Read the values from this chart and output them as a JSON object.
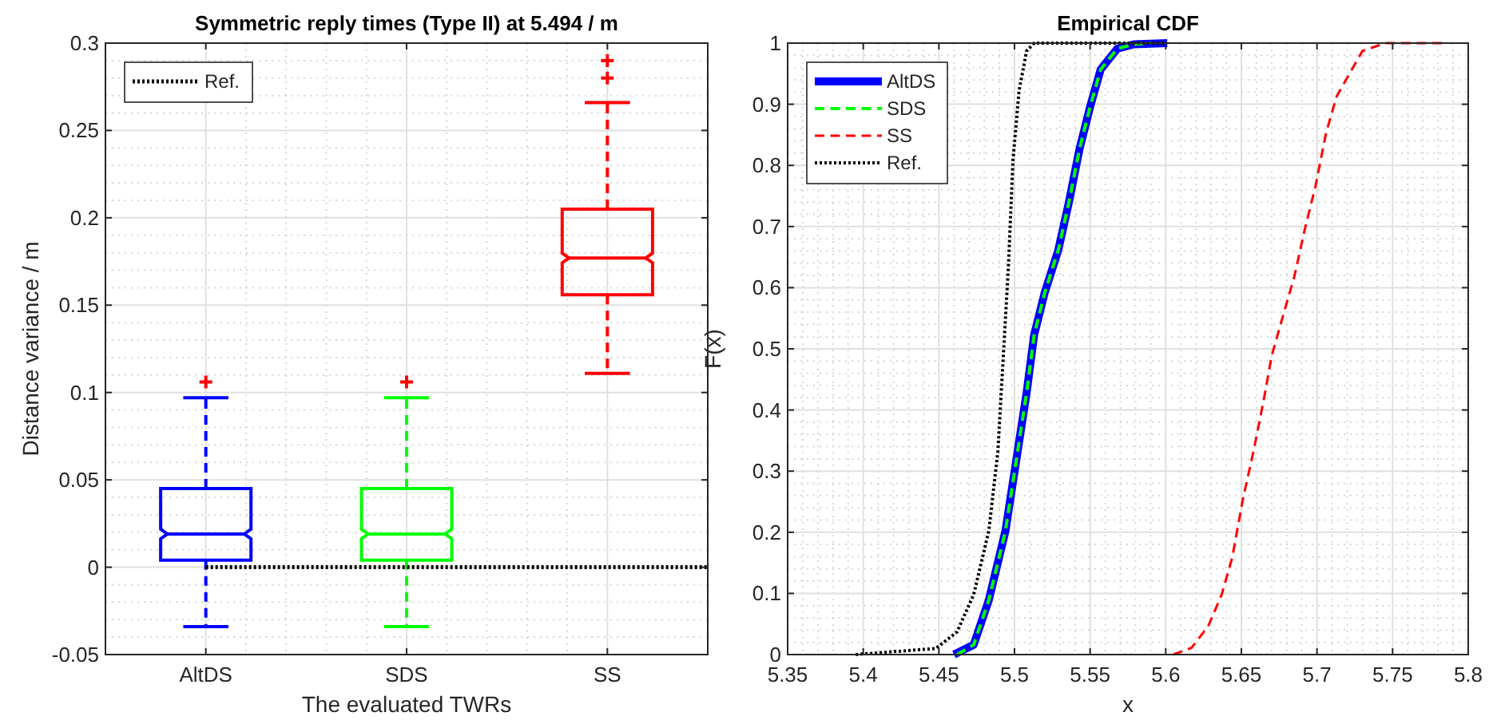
{
  "chart_data": [
    {
      "type": "box",
      "title": "Symmetric reply times (Type II) at 5.494 / m",
      "xlabel": "The evaluated TWRs",
      "ylabel": "Distance variance / m",
      "categories": [
        "AltDS",
        "SDS",
        "SS"
      ],
      "colors": [
        "#0000ff",
        "#00ff00",
        "#ff0000"
      ],
      "boxes": [
        {
          "low": -0.034,
          "q1": 0.004,
          "median": 0.019,
          "q3": 0.045,
          "high": 0.097,
          "outliers": [
            0.106
          ]
        },
        {
          "low": -0.034,
          "q1": 0.004,
          "median": 0.019,
          "q3": 0.045,
          "high": 0.097,
          "outliers": [
            0.106
          ]
        },
        {
          "low": 0.111,
          "q1": 0.156,
          "median": 0.177,
          "q3": 0.205,
          "high": 0.266,
          "outliers": [
            0.28,
            0.29
          ]
        }
      ],
      "ylim": [
        -0.05,
        0.3
      ],
      "yticks": [
        -0.05,
        0,
        0.05,
        0.1,
        0.15,
        0.2,
        0.25,
        0.3
      ],
      "ref_lines": [
        {
          "axis": "y",
          "value": 0,
          "label": "Ref.",
          "color": "#000000",
          "line_style": "dotted"
        }
      ],
      "grid": true,
      "legend": "top left"
    },
    {
      "type": "line",
      "title": "Empirical CDF",
      "xlabel": "x",
      "ylabel": "F(x)",
      "xlim": [
        5.35,
        5.8
      ],
      "xticks": [
        5.35,
        5.4,
        5.45,
        5.5,
        5.55,
        5.6,
        5.65,
        5.7,
        5.75,
        5.8
      ],
      "ylim": [
        0,
        1
      ],
      "yticks": [
        0,
        0.1,
        0.2,
        0.3,
        0.4,
        0.5,
        0.6,
        0.7,
        0.8,
        0.9,
        1
      ],
      "grid": true,
      "legend": "top left",
      "series": [
        {
          "name": "AltDS",
          "color": "#0000ff",
          "line_style": "solid",
          "x": [
            5.46,
            5.473,
            5.483,
            5.494,
            5.501,
            5.508,
            5.513,
            5.52,
            5.529,
            5.536,
            5.543,
            5.55,
            5.557,
            5.568,
            5.579,
            5.601
          ],
          "values": [
            0,
            0.016,
            0.089,
            0.202,
            0.315,
            0.428,
            0.523,
            0.592,
            0.662,
            0.74,
            0.827,
            0.896,
            0.957,
            0.991,
            0.998,
            1
          ]
        },
        {
          "name": "SDS",
          "color": "#00ff00",
          "line_style": "dashed",
          "x": [
            5.462,
            5.473,
            5.483,
            5.494,
            5.501,
            5.508,
            5.513,
            5.52,
            5.529,
            5.536,
            5.543,
            5.55,
            5.557,
            5.568,
            5.579,
            5.59
          ],
          "values": [
            0,
            0.016,
            0.089,
            0.202,
            0.315,
            0.428,
            0.523,
            0.592,
            0.662,
            0.74,
            0.827,
            0.896,
            0.957,
            0.991,
            0.998,
            1
          ]
        },
        {
          "name": "SS",
          "color": "#ff0000",
          "line_style": "dashed",
          "x": [
            5.605,
            5.617,
            5.628,
            5.637,
            5.644,
            5.651,
            5.658,
            5.665,
            5.67,
            5.678,
            5.685,
            5.692,
            5.699,
            5.706,
            5.713,
            5.73,
            5.745,
            5.783
          ],
          "values": [
            0,
            0.011,
            0.046,
            0.098,
            0.159,
            0.254,
            0.332,
            0.419,
            0.488,
            0.558,
            0.618,
            0.696,
            0.766,
            0.853,
            0.913,
            0.987,
            1,
            1
          ]
        },
        {
          "name": "Ref.",
          "color": "#000000",
          "line_style": "dotted",
          "x": [
            5.395,
            5.448,
            5.462,
            5.473,
            5.483,
            5.489,
            5.492,
            5.496,
            5.499,
            5.503,
            5.508,
            5.513,
            5.6
          ],
          "values": [
            0,
            0.01,
            0.037,
            0.098,
            0.202,
            0.332,
            0.462,
            0.636,
            0.809,
            0.922,
            0.987,
            1,
            1
          ]
        }
      ]
    }
  ]
}
